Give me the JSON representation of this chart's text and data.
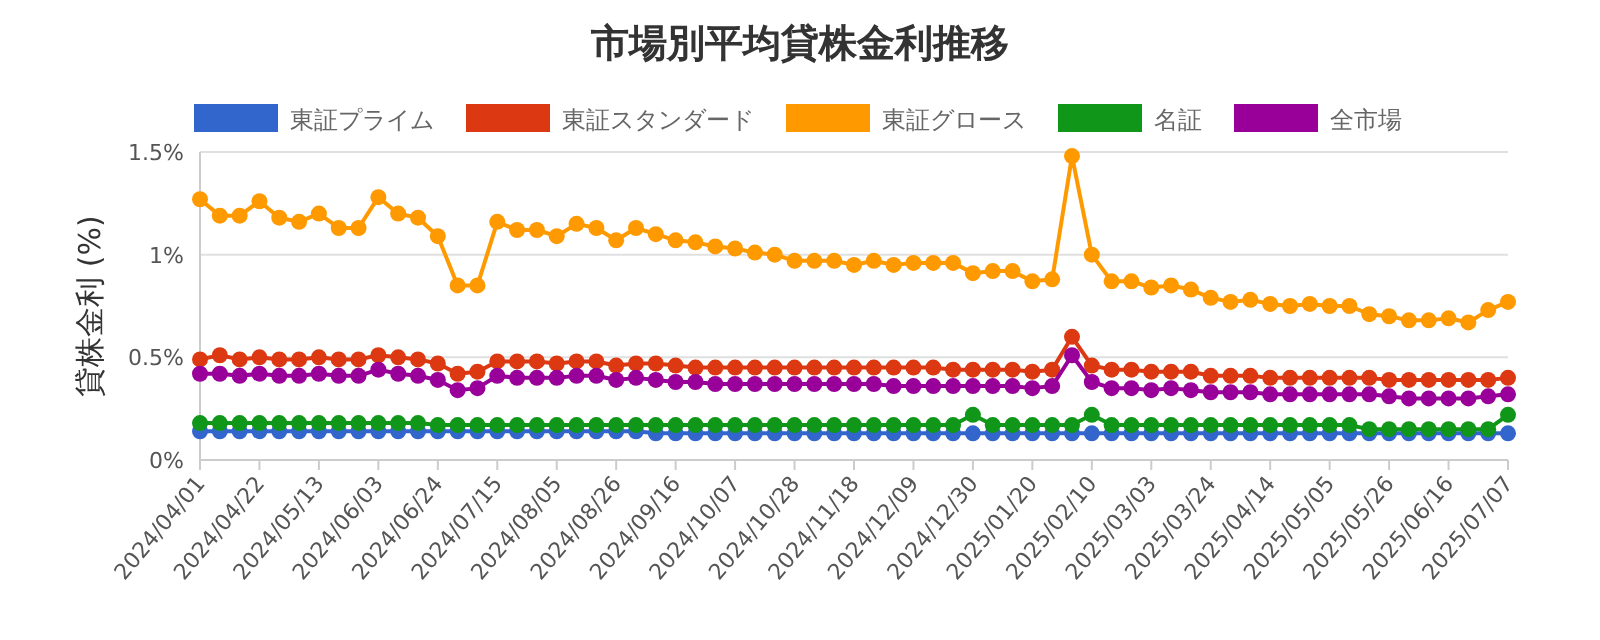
{
  "chart_data": {
    "type": "line",
    "title": "市場別平均貸株金利推移",
    "ylabel": "貸株金利 (%)",
    "categories": [
      "2024/04/01",
      null,
      null,
      "2024/04/22",
      null,
      null,
      "2024/05/13",
      null,
      null,
      "2024/06/03",
      null,
      null,
      "2024/06/24",
      null,
      null,
      "2024/07/15",
      null,
      null,
      "2024/08/05",
      null,
      null,
      "2024/08/26",
      null,
      null,
      "2024/09/16",
      null,
      null,
      "2024/10/07",
      null,
      null,
      "2024/10/28",
      null,
      null,
      "2024/11/18",
      null,
      null,
      "2024/12/09",
      null,
      null,
      "2024/12/30",
      null,
      null,
      "2025/01/20",
      null,
      null,
      "2025/02/10",
      null,
      null,
      "2025/03/03",
      null,
      null,
      "2025/03/24",
      null,
      null,
      "2025/04/14",
      null,
      null,
      "2025/05/05",
      null,
      null,
      "2025/05/26",
      null,
      null,
      "2025/06/16",
      null,
      null,
      "2025/07/07"
    ],
    "series": [
      {
        "name": "東証プライム",
        "color": "#3366cc",
        "values": [
          0.14,
          0.14,
          0.14,
          0.14,
          0.14,
          0.14,
          0.14,
          0.14,
          0.14,
          0.14,
          0.14,
          0.14,
          0.14,
          0.14,
          0.14,
          0.14,
          0.14,
          0.14,
          0.14,
          0.14,
          0.14,
          0.14,
          0.14,
          0.13,
          0.13,
          0.13,
          0.13,
          0.13,
          0.13,
          0.13,
          0.13,
          0.13,
          0.13,
          0.13,
          0.13,
          0.13,
          0.13,
          0.13,
          0.13,
          0.13,
          0.13,
          0.13,
          0.13,
          0.13,
          0.13,
          0.13,
          0.13,
          0.13,
          0.13,
          0.13,
          0.13,
          0.13,
          0.13,
          0.13,
          0.13,
          0.13,
          0.13,
          0.13,
          0.13,
          0.13,
          0.13,
          0.13,
          0.13,
          0.13,
          0.13,
          0.13,
          0.13
        ]
      },
      {
        "name": "東証スタンダード",
        "color": "#dc3912",
        "values": [
          0.49,
          0.51,
          0.49,
          0.5,
          0.49,
          0.49,
          0.5,
          0.49,
          0.49,
          0.51,
          0.5,
          0.49,
          0.47,
          0.42,
          0.43,
          0.48,
          0.48,
          0.48,
          0.47,
          0.48,
          0.48,
          0.46,
          0.47,
          0.47,
          0.46,
          0.45,
          0.45,
          0.45,
          0.45,
          0.45,
          0.45,
          0.45,
          0.45,
          0.45,
          0.45,
          0.45,
          0.45,
          0.45,
          0.44,
          0.44,
          0.44,
          0.44,
          0.43,
          0.44,
          0.6,
          0.46,
          0.44,
          0.44,
          0.43,
          0.43,
          0.43,
          0.41,
          0.41,
          0.41,
          0.4,
          0.4,
          0.4,
          0.4,
          0.4,
          0.4,
          0.39,
          0.39,
          0.39,
          0.39,
          0.39,
          0.39,
          0.4
        ]
      },
      {
        "name": "東証グロース",
        "color": "#ff9900",
        "values": [
          1.27,
          1.19,
          1.19,
          1.26,
          1.18,
          1.16,
          1.2,
          1.13,
          1.13,
          1.28,
          1.2,
          1.18,
          1.09,
          0.85,
          0.85,
          1.16,
          1.12,
          1.12,
          1.09,
          1.15,
          1.13,
          1.07,
          1.13,
          1.1,
          1.07,
          1.06,
          1.04,
          1.03,
          1.01,
          1.0,
          0.97,
          0.97,
          0.97,
          0.95,
          0.97,
          0.95,
          0.96,
          0.96,
          0.96,
          0.91,
          0.92,
          0.92,
          0.87,
          0.88,
          1.48,
          1.0,
          0.87,
          0.87,
          0.84,
          0.85,
          0.83,
          0.79,
          0.77,
          0.78,
          0.76,
          0.75,
          0.76,
          0.75,
          0.75,
          0.71,
          0.7,
          0.68,
          0.68,
          0.69,
          0.67,
          0.73,
          0.77
        ]
      },
      {
        "name": "名証",
        "color": "#109618",
        "values": [
          0.18,
          0.18,
          0.18,
          0.18,
          0.18,
          0.18,
          0.18,
          0.18,
          0.18,
          0.18,
          0.18,
          0.18,
          0.17,
          0.17,
          0.17,
          0.17,
          0.17,
          0.17,
          0.17,
          0.17,
          0.17,
          0.17,
          0.17,
          0.17,
          0.17,
          0.17,
          0.17,
          0.17,
          0.17,
          0.17,
          0.17,
          0.17,
          0.17,
          0.17,
          0.17,
          0.17,
          0.17,
          0.17,
          0.17,
          0.22,
          0.17,
          0.17,
          0.17,
          0.17,
          0.17,
          0.22,
          0.17,
          0.17,
          0.17,
          0.17,
          0.17,
          0.17,
          0.17,
          0.17,
          0.17,
          0.17,
          0.17,
          0.17,
          0.17,
          0.15,
          0.15,
          0.15,
          0.15,
          0.15,
          0.15,
          0.15,
          0.22
        ]
      },
      {
        "name": "全市場",
        "color": "#990099",
        "values": [
          0.42,
          0.42,
          0.41,
          0.42,
          0.41,
          0.41,
          0.42,
          0.41,
          0.41,
          0.44,
          0.42,
          0.41,
          0.39,
          0.34,
          0.35,
          0.41,
          0.4,
          0.4,
          0.4,
          0.41,
          0.41,
          0.39,
          0.4,
          0.39,
          0.38,
          0.38,
          0.37,
          0.37,
          0.37,
          0.37,
          0.37,
          0.37,
          0.37,
          0.37,
          0.37,
          0.36,
          0.36,
          0.36,
          0.36,
          0.36,
          0.36,
          0.36,
          0.35,
          0.36,
          0.51,
          0.38,
          0.35,
          0.35,
          0.34,
          0.35,
          0.34,
          0.33,
          0.33,
          0.33,
          0.32,
          0.32,
          0.32,
          0.32,
          0.32,
          0.32,
          0.31,
          0.3,
          0.3,
          0.3,
          0.3,
          0.31,
          0.32
        ]
      }
    ],
    "ylim": [
      0,
      1.5
    ],
    "yticks": [
      {
        "value": 0,
        "label": "0%"
      },
      {
        "value": 0.5,
        "label": "0.5%"
      },
      {
        "value": 1,
        "label": "1%"
      },
      {
        "value": 1.5,
        "label": "1.5%"
      }
    ],
    "grid": "y",
    "legend": "top",
    "marker": "circle",
    "line_style": "solid"
  }
}
